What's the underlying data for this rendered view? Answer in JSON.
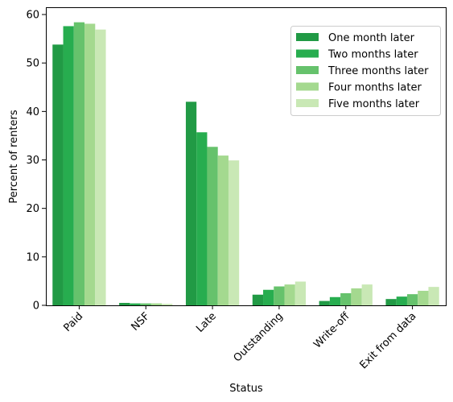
{
  "chart_data": {
    "type": "bar",
    "title": "",
    "xlabel": "Status",
    "ylabel": "Percent of renters",
    "ylim": [
      0,
      61.5
    ],
    "yticks": [
      0,
      10,
      20,
      30,
      40,
      50,
      60
    ],
    "grid": false,
    "legend_placement": "upper right",
    "categories": [
      "Paid",
      "NSF",
      "Late",
      "Outstanding",
      "Write-off",
      "Exit from data"
    ],
    "series": [
      {
        "name": "One month later",
        "color": "#219a45",
        "values": [
          53.8,
          0.5,
          42.0,
          2.2,
          0.9,
          1.3
        ]
      },
      {
        "name": "Two months later",
        "color": "#27ad4f",
        "values": [
          57.6,
          0.4,
          35.7,
          3.2,
          1.7,
          1.8
        ]
      },
      {
        "name": "Three months later",
        "color": "#66c26c",
        "values": [
          58.4,
          0.4,
          32.7,
          3.9,
          2.5,
          2.3
        ]
      },
      {
        "name": "Four months later",
        "color": "#a4d98f",
        "values": [
          58.1,
          0.4,
          30.9,
          4.3,
          3.5,
          3.0
        ]
      },
      {
        "name": "Five months later",
        "color": "#c9e8b5",
        "values": [
          56.9,
          0.3,
          29.9,
          4.9,
          4.3,
          3.8
        ]
      }
    ]
  }
}
